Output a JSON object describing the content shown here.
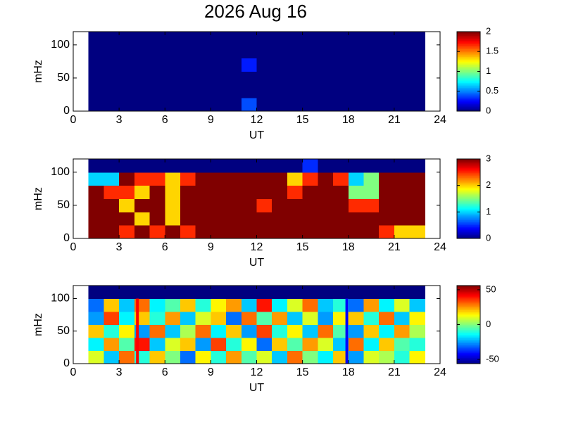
{
  "title": "2026 Aug 16",
  "chart_data": [
    {
      "type": "heatmap",
      "colormap": "jet",
      "xlabel": "UT",
      "ylabel": "mHz",
      "x": [
        0.5,
        1.5,
        2.5,
        3.5,
        4.5,
        5.5,
        6.5,
        7.5,
        8.5,
        9.5,
        10.5,
        11.5,
        12.5,
        13.5,
        14.5,
        15.5,
        16.5,
        17.5,
        18.5,
        19.5,
        20.5,
        21.5,
        22.5,
        23.5
      ],
      "y": [
        10,
        30,
        50,
        70,
        90,
        110
      ],
      "values": [
        [
          null,
          0,
          0,
          0,
          0,
          0,
          0,
          0,
          0,
          0,
          0,
          0.4,
          0,
          0,
          0,
          0,
          0,
          0,
          0,
          0,
          0,
          0,
          0,
          null
        ],
        [
          null,
          0,
          0,
          0,
          0,
          0,
          0,
          0,
          0,
          0,
          0,
          0,
          0,
          0,
          0,
          0,
          0,
          0,
          0,
          0,
          0,
          0,
          0,
          null
        ],
        [
          null,
          0,
          0,
          0,
          0,
          0,
          0,
          0,
          0,
          0,
          0,
          0,
          0,
          0,
          0,
          0,
          0,
          0,
          0,
          0,
          0,
          0,
          0,
          null
        ],
        [
          null,
          0,
          0,
          0,
          0,
          0,
          0,
          0,
          0,
          0,
          0,
          0.3,
          0,
          0,
          0,
          0,
          0,
          0,
          0,
          0,
          0,
          0,
          0,
          null
        ],
        [
          null,
          0,
          0,
          0,
          0,
          0,
          0,
          0,
          0,
          0,
          0,
          0,
          0,
          0,
          0,
          0,
          0,
          0,
          0,
          0,
          0,
          0,
          0,
          null
        ],
        [
          null,
          0,
          0,
          0,
          0,
          0,
          0,
          0,
          0,
          0,
          0,
          0,
          0,
          0,
          0,
          0,
          0,
          0,
          0,
          0,
          0,
          0,
          0,
          null
        ]
      ],
      "xlim": [
        0,
        24
      ],
      "ylim": [
        0,
        120
      ],
      "xticks": [
        0,
        3,
        6,
        9,
        12,
        15,
        18,
        21,
        24
      ],
      "yticks": [
        0,
        50,
        100
      ],
      "clim": [
        0,
        2
      ],
      "cticks": [
        0,
        0.5,
        1,
        1.5,
        2
      ]
    },
    {
      "type": "heatmap",
      "colormap": "jet",
      "xlabel": "UT",
      "ylabel": "mHz",
      "x": [
        0.5,
        1.5,
        2.5,
        3.5,
        4.5,
        5.5,
        6.5,
        7.5,
        8.5,
        9.5,
        10.5,
        11.5,
        12.5,
        13.5,
        14.5,
        15.5,
        16.5,
        17.5,
        18.5,
        19.5,
        20.5,
        21.5,
        22.5,
        23.5
      ],
      "y": [
        10,
        30,
        50,
        70,
        90,
        110
      ],
      "values": [
        [
          null,
          3,
          3,
          2.5,
          3,
          2.5,
          3,
          2.5,
          3,
          3,
          3,
          3,
          3,
          3,
          3,
          3,
          3,
          3,
          3,
          3,
          2.5,
          2,
          2,
          null
        ],
        [
          null,
          3,
          3,
          3,
          2,
          3,
          2,
          3,
          3,
          3,
          3,
          3,
          3,
          3,
          3,
          3,
          3,
          3,
          3,
          3,
          3,
          3,
          3,
          null
        ],
        [
          null,
          3,
          3,
          2,
          3,
          3,
          2,
          3,
          3,
          3,
          3,
          3,
          2.5,
          3,
          3,
          3,
          3,
          3,
          2.5,
          2.5,
          3,
          3,
          3,
          null
        ],
        [
          null,
          3,
          2.5,
          2.5,
          2,
          3,
          2,
          3,
          3,
          3,
          3,
          3,
          3,
          3,
          2.5,
          3,
          3,
          3,
          1.5,
          1.5,
          3,
          3,
          3,
          null
        ],
        [
          null,
          1,
          1,
          3,
          2.5,
          2.5,
          2,
          2.5,
          3,
          3,
          3,
          3,
          3,
          3,
          2,
          2.5,
          3,
          2.5,
          1,
          1.5,
          3,
          3,
          3,
          null
        ],
        [
          null,
          0,
          0,
          0,
          0,
          0,
          0,
          0,
          0,
          0,
          0,
          0,
          0,
          0,
          0,
          0.5,
          0,
          0,
          0,
          0,
          0,
          0,
          0,
          null
        ]
      ],
      "xlim": [
        0,
        24
      ],
      "ylim": [
        0,
        120
      ],
      "xticks": [
        0,
        3,
        6,
        9,
        12,
        15,
        18,
        21,
        24
      ],
      "yticks": [
        0,
        50,
        100
      ],
      "clim": [
        0,
        3
      ],
      "cticks": [
        0,
        1,
        2,
        3
      ]
    },
    {
      "type": "heatmap",
      "colormap": "jet",
      "xlabel": "UT",
      "ylabel": "mHz",
      "x": [
        0.5,
        1.5,
        2.5,
        3.5,
        4.5,
        5.5,
        6.5,
        7.5,
        8.5,
        9.5,
        10.5,
        11.5,
        12.5,
        13.5,
        14.5,
        15.5,
        16.5,
        17.5,
        18.5,
        19.5,
        20.5,
        21.5,
        22.5,
        23.5
      ],
      "y": [
        10,
        30,
        50,
        70,
        90,
        110
      ],
      "values": [
        [
          null,
          10,
          -20,
          30,
          -10,
          20,
          0,
          -30,
          15,
          -10,
          25,
          -5,
          10,
          -20,
          30,
          0,
          -15,
          20,
          -25,
          10,
          5,
          -10,
          15,
          null
        ],
        [
          null,
          -15,
          25,
          -5,
          40,
          -20,
          10,
          20,
          -25,
          35,
          -10,
          15,
          -30,
          20,
          -5,
          25,
          10,
          -20,
          30,
          -15,
          20,
          -5,
          -10,
          null
        ],
        [
          null,
          20,
          -10,
          15,
          -25,
          30,
          -20,
          5,
          30,
          -15,
          20,
          -25,
          35,
          -10,
          15,
          -20,
          30,
          -5,
          -25,
          20,
          -15,
          25,
          5,
          null
        ],
        [
          null,
          -25,
          35,
          -15,
          20,
          -10,
          25,
          -20,
          10,
          20,
          -30,
          30,
          -5,
          25,
          -20,
          10,
          -25,
          15,
          20,
          -10,
          30,
          -20,
          15,
          null
        ],
        [
          null,
          -30,
          20,
          -20,
          30,
          -15,
          -5,
          20,
          -10,
          15,
          25,
          -20,
          40,
          -15,
          10,
          30,
          -20,
          -10,
          -30,
          25,
          -15,
          10,
          -20,
          null
        ],
        [
          null,
          -56,
          -56,
          -56,
          -56,
          -56,
          -56,
          -56,
          -56,
          -56,
          -56,
          -56,
          -56,
          -56,
          -56,
          -56,
          -56,
          -56,
          -56,
          -56,
          -56,
          -56,
          -56,
          null
        ]
      ],
      "vlines": [
        {
          "x": 4.2,
          "color": "#ff0000"
        },
        {
          "x": 17.9,
          "color": "#0000ff"
        }
      ],
      "xlim": [
        0,
        24
      ],
      "ylim": [
        0,
        120
      ],
      "xticks": [
        0,
        3,
        6,
        9,
        12,
        15,
        18,
        21,
        24
      ],
      "yticks": [
        0,
        50,
        100
      ],
      "clim": [
        -56,
        56
      ],
      "cticks": [
        -50,
        0,
        50
      ]
    }
  ]
}
